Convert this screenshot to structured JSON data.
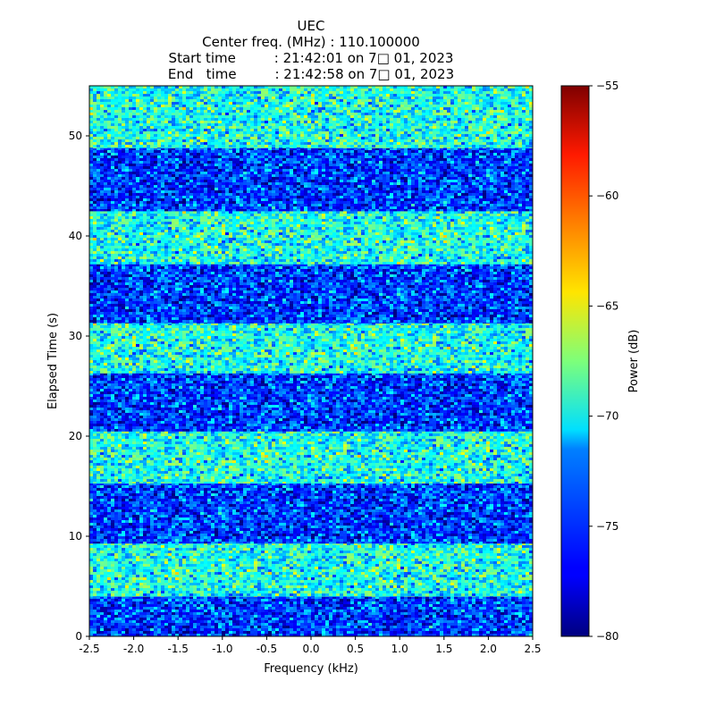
{
  "chart_data": {
    "type": "heatmap",
    "title_lines": [
      "UEC",
      "Center freq. (MHz) : 110.100000",
      "Start time         : 21:42:01 on 7□ 01, 2023",
      "End   time         : 21:42:58 on 7□ 01, 2023"
    ],
    "xlabel": "Frequency (kHz)",
    "ylabel": "Elapsed Time (s)",
    "xlim": [
      -2.5,
      2.5
    ],
    "ylim": [
      0,
      55
    ],
    "x_ticks": [
      "-2.5",
      "-2.0",
      "-1.5",
      "-1.0",
      "-0.5",
      "0.0",
      "0.5",
      "1.0",
      "1.5",
      "2.0",
      "2.5"
    ],
    "x_tick_values": [
      -2.5,
      -2.0,
      -1.5,
      -1.0,
      -0.5,
      0.0,
      0.5,
      1.0,
      1.5,
      2.0,
      2.5
    ],
    "y_ticks": [
      "0",
      "10",
      "20",
      "30",
      "40",
      "50"
    ],
    "y_tick_values": [
      0,
      10,
      20,
      30,
      40,
      50
    ],
    "colorbar": {
      "label": "Power (dB)",
      "range": [
        -80,
        -55
      ],
      "ticks": [
        "−55",
        "−60",
        "−65",
        "−70",
        "−75",
        "−80"
      ],
      "tick_values": [
        -55,
        -60,
        -65,
        -70,
        -75,
        -80
      ],
      "colormap": "jet"
    },
    "bands": [
      {
        "t_start": 0.0,
        "t_end": 4.0,
        "level": "low",
        "mean_db": -75.5
      },
      {
        "t_start": 4.0,
        "t_end": 9.3,
        "level": "high",
        "mean_db": -70.0
      },
      {
        "t_start": 9.3,
        "t_end": 15.3,
        "level": "low",
        "mean_db": -75.5
      },
      {
        "t_start": 15.3,
        "t_end": 20.5,
        "level": "high",
        "mean_db": -70.0
      },
      {
        "t_start": 20.5,
        "t_end": 26.3,
        "level": "low",
        "mean_db": -75.5
      },
      {
        "t_start": 26.3,
        "t_end": 31.3,
        "level": "high",
        "mean_db": -70.0
      },
      {
        "t_start": 31.3,
        "t_end": 37.2,
        "level": "low",
        "mean_db": -75.5
      },
      {
        "t_start": 37.2,
        "t_end": 42.5,
        "level": "high",
        "mean_db": -70.0
      },
      {
        "t_start": 42.5,
        "t_end": 48.8,
        "level": "low",
        "mean_db": -75.5
      },
      {
        "t_start": 48.8,
        "t_end": 55.0,
        "level": "high",
        "mean_db": -70.0
      }
    ]
  }
}
